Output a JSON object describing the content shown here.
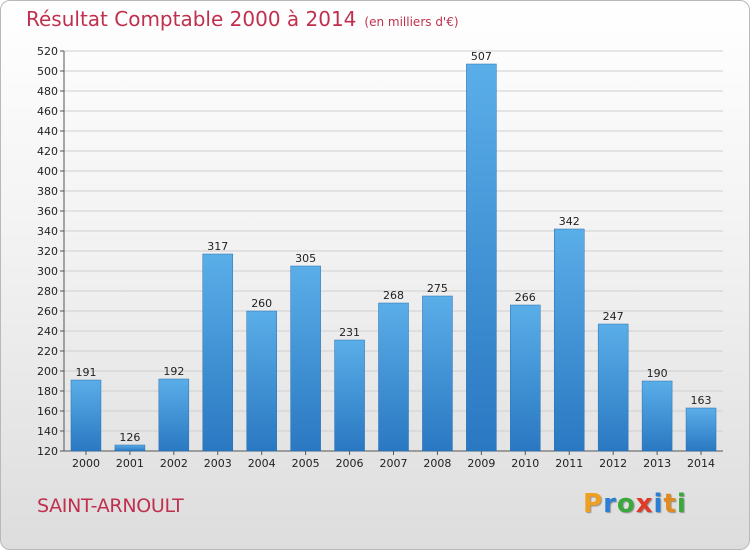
{
  "title": "Résultat Comptable 2000 à 2014",
  "subtitle": "(en milliers d'€)",
  "place": "SAINT-ARNOULT",
  "logo": {
    "letters": [
      "P",
      "r",
      "o",
      "x",
      "i",
      "t",
      "i"
    ],
    "colors": [
      "#f0a020",
      "#2a7fd4",
      "#3aa83a",
      "#e03a2a",
      "#2a7fd4",
      "#e08a20",
      "#3aa83a"
    ]
  },
  "chart_data": {
    "type": "bar",
    "categories": [
      "2000",
      "2001",
      "2002",
      "2003",
      "2004",
      "2005",
      "2006",
      "2007",
      "2008",
      "2009",
      "2010",
      "2011",
      "2012",
      "2013",
      "2014"
    ],
    "values": [
      191,
      126,
      192,
      317,
      260,
      305,
      231,
      268,
      275,
      507,
      266,
      342,
      247,
      190,
      163
    ],
    "ylim": [
      120,
      520
    ],
    "yticks": [
      120,
      140,
      160,
      180,
      200,
      220,
      240,
      260,
      280,
      300,
      320,
      340,
      360,
      380,
      400,
      420,
      440,
      460,
      480,
      500,
      520
    ],
    "bar_color_top": "#5aaee8",
    "bar_color_bottom": "#2a78c2",
    "grid": true
  }
}
